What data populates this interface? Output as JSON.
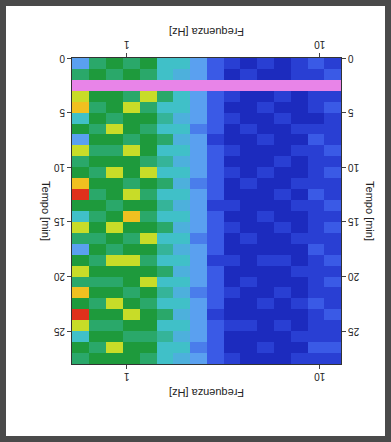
{
  "chart_data": {
    "type": "heatmap",
    "xlabel": "Frequenza [Hz]",
    "ylabel": "Tempo [min]",
    "log": "x",
    "xlim": [
      0.52,
      12.9
    ],
    "xticks": [
      1,
      10
    ],
    "ylim": [
      0,
      28
    ],
    "yticks": [
      0,
      5,
      10,
      15,
      20,
      25
    ],
    "zlim": [
      0,
      10
    ],
    "xbins": [
      0.52,
      0.64,
      0.78,
      0.96,
      1.17,
      1.43,
      1.74,
      2.13,
      2.6,
      3.18,
      3.88,
      4.74,
      5.79,
      7.08,
      8.65,
      10.57,
      12.9
    ],
    "ybins": [
      0,
      1,
      2,
      3,
      4,
      5,
      6,
      7,
      8,
      9,
      10,
      11,
      12,
      13,
      14,
      15,
      16,
      17,
      18,
      19,
      20,
      21,
      22,
      23,
      24,
      25,
      26,
      27,
      28
    ],
    "cells": [
      [
        3,
        5,
        6,
        5,
        6,
        4,
        4,
        3,
        2,
        1.5,
        1,
        1.5,
        1,
        1.5,
        2,
        1.5
      ],
      [
        5,
        6,
        5,
        6,
        5,
        4,
        3.5,
        3,
        2,
        1,
        1.5,
        1,
        1,
        1.5,
        1.5,
        2
      ],
      [
        10,
        10,
        10,
        10,
        10,
        10,
        10,
        10,
        10,
        10,
        10,
        10,
        10,
        10,
        10,
        10
      ],
      [
        7,
        6,
        6,
        5,
        7,
        5,
        4,
        3,
        2,
        1.5,
        1,
        1,
        1.5,
        1,
        1.5,
        1.5
      ],
      [
        8,
        5,
        6,
        7,
        5,
        4,
        4,
        3,
        2,
        1,
        1,
        1.5,
        1,
        1,
        1.5,
        2
      ],
      [
        4,
        6,
        5,
        6,
        6,
        4.5,
        3.5,
        3,
        2,
        1.5,
        1,
        1,
        1.5,
        1,
        1,
        1.5
      ],
      [
        6,
        5,
        7,
        6,
        5,
        4,
        4,
        2.5,
        2,
        1,
        1.5,
        1,
        1,
        1.5,
        1.5,
        1.5
      ],
      [
        3,
        6,
        6,
        5,
        6,
        5,
        3.5,
        3,
        1.5,
        1,
        1,
        1.5,
        1,
        1,
        2,
        1.5
      ],
      [
        7,
        5,
        5,
        7,
        6,
        4,
        4,
        3,
        2,
        1.5,
        1,
        1,
        1,
        1.5,
        1.5,
        2
      ],
      [
        5,
        6,
        6,
        6,
        5,
        4.5,
        3.5,
        3,
        2,
        1,
        1,
        1,
        1.5,
        1,
        1.5,
        1.5
      ],
      [
        6,
        5,
        7,
        6,
        7,
        4,
        4,
        3,
        2,
        1.5,
        1,
        1.5,
        1,
        1,
        1.5,
        2
      ],
      [
        8,
        6,
        6,
        5,
        6,
        5,
        3.5,
        2.5,
        2,
        1,
        1.5,
        1,
        1,
        1.5,
        1.5,
        1.5
      ],
      [
        9,
        5,
        6,
        7,
        5,
        4,
        4,
        3,
        2,
        1,
        1,
        1,
        1.5,
        1,
        2,
        1.5
      ],
      [
        6,
        6,
        5,
        6,
        6,
        4.5,
        3.5,
        3,
        1.5,
        1.5,
        1,
        1,
        1,
        1.5,
        1.5,
        2
      ],
      [
        4,
        5,
        6,
        8,
        5,
        4,
        4,
        3,
        2,
        1,
        1,
        1.5,
        1,
        1,
        1.5,
        1.5
      ],
      [
        7,
        6,
        7,
        6,
        6,
        5,
        3.5,
        3,
        2,
        1.5,
        1,
        1,
        1.5,
        1,
        1.5,
        2
      ],
      [
        5,
        5,
        6,
        5,
        7,
        4,
        4,
        2.5,
        2,
        1,
        1.5,
        1,
        1,
        1.5,
        1.5,
        1.5
      ],
      [
        3,
        6,
        5,
        6,
        6,
        4.5,
        3.5,
        3,
        2,
        1,
        1,
        1,
        1,
        1,
        2,
        1.5
      ],
      [
        6,
        5,
        7,
        7,
        5,
        4,
        4,
        3,
        1.5,
        1.5,
        1,
        1.5,
        1.5,
        1,
        1.5,
        2
      ],
      [
        7,
        6,
        6,
        6,
        6,
        5,
        3.5,
        3,
        2,
        1,
        1,
        1,
        1,
        1.5,
        1.5,
        1.5
      ],
      [
        5,
        5,
        5,
        6,
        7,
        4,
        4,
        3,
        2,
        1,
        1.5,
        1,
        1,
        1,
        1.5,
        2
      ],
      [
        8,
        6,
        6,
        5,
        6,
        4.5,
        3.5,
        2.5,
        2,
        1.5,
        1,
        1,
        1.5,
        1,
        1.5,
        1.5
      ],
      [
        6,
        5,
        7,
        6,
        5,
        4,
        4,
        3,
        2,
        1,
        1,
        1.5,
        1,
        1.5,
        2,
        1.5
      ],
      [
        9,
        6,
        6,
        7,
        6,
        5,
        3.5,
        3,
        1.5,
        1,
        1,
        1,
        1,
        1,
        1.5,
        2
      ],
      [
        7,
        5,
        5,
        6,
        6,
        4,
        4,
        3,
        2,
        1.5,
        1.5,
        1,
        1.5,
        1,
        1.5,
        1.5
      ],
      [
        4,
        6,
        6,
        5,
        5,
        4.5,
        3.5,
        3,
        2,
        1,
        1,
        1,
        1,
        1.5,
        1.5,
        1.5
      ],
      [
        6,
        5,
        7,
        6,
        6,
        4,
        4,
        2.5,
        2,
        1,
        1,
        1.5,
        1,
        1,
        2,
        2
      ],
      [
        5,
        6,
        6,
        6,
        5,
        4,
        3.5,
        3,
        2,
        1.5,
        1,
        1,
        1,
        1.5,
        1.5,
        1.5
      ]
    ]
  }
}
